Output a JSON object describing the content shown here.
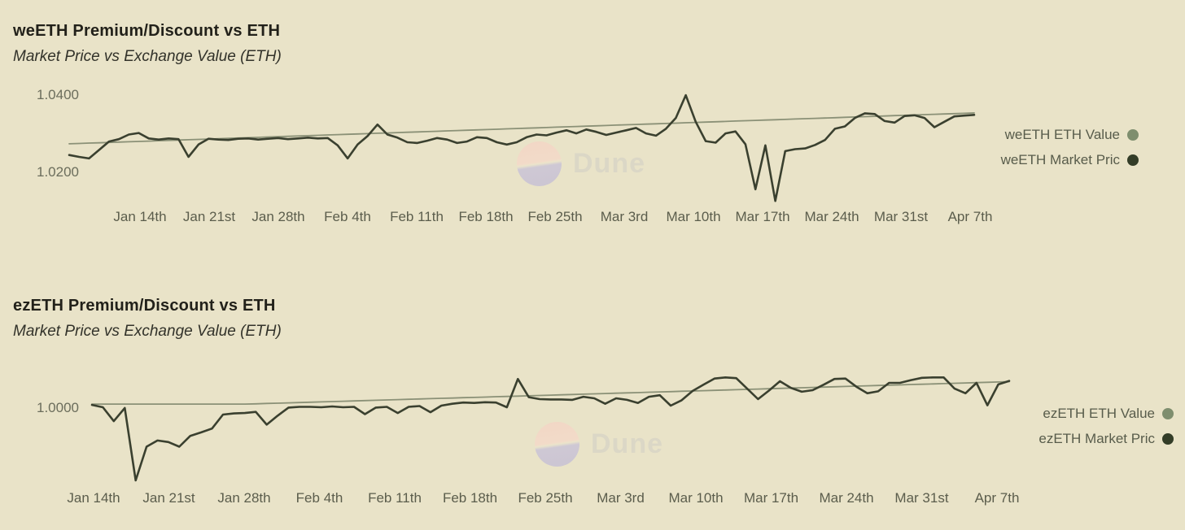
{
  "background_color": "#e9e3c8",
  "watermark": {
    "text": "Dune"
  },
  "chart_data": [
    {
      "type": "line",
      "title": "weETH Premium/Discount vs ETH",
      "subtitle": "Market Price vs Exchange Value (ETH)",
      "y_ticks": [
        "1.0400",
        "1.0200"
      ],
      "x_ticks": [
        "Jan 14th",
        "Jan 21st",
        "Jan 28th",
        "Feb 4th",
        "Feb 11th",
        "Feb 18th",
        "Feb 25th",
        "Mar 3rd",
        "Mar 10th",
        "Mar 17th",
        "Mar 24th",
        "Mar 31st",
        "Apr 7th"
      ],
      "x_start": "Jan 7",
      "x_interval": "1 day",
      "ylim": [
        1.012,
        1.0436
      ],
      "grid": false,
      "legend_position": "right",
      "series": [
        {
          "name": "weETH ETH Value",
          "color": "#8b9177",
          "legend_dot_color": "#7e8e6e",
          "stroke_width": 1.8,
          "values": [
            1.0274,
            1.02749,
            1.02758,
            1.02766,
            1.02775,
            1.02784,
            1.02793,
            1.02802,
            1.0281,
            1.02819,
            1.02828,
            1.02837,
            1.02845,
            1.02854,
            1.02863,
            1.02872,
            1.02881,
            1.02889,
            1.02898,
            1.02907,
            1.02916,
            1.02925,
            1.02933,
            1.02942,
            1.02951,
            1.0296,
            1.02969,
            1.02977,
            1.02986,
            1.02995,
            1.03004,
            1.03013,
            1.03021,
            1.0303,
            1.03039,
            1.03048,
            1.03056,
            1.03065,
            1.03074,
            1.03083,
            1.03092,
            1.031,
            1.03109,
            1.03118,
            1.03127,
            1.03136,
            1.03144,
            1.03153,
            1.03162,
            1.03171,
            1.0318,
            1.03188,
            1.03197,
            1.03206,
            1.03215,
            1.03224,
            1.03232,
            1.03241,
            1.0325,
            1.03259,
            1.03267,
            1.03276,
            1.03285,
            1.03294,
            1.03303,
            1.03311,
            1.0332,
            1.03329,
            1.03338,
            1.03347,
            1.03355,
            1.03364,
            1.03373,
            1.03382,
            1.03391,
            1.03399,
            1.03408,
            1.03417,
            1.03426,
            1.03435,
            1.03443,
            1.03452,
            1.03461,
            1.0347,
            1.03478,
            1.03487,
            1.03496,
            1.03505,
            1.03514,
            1.03522,
            1.03531,
            1.0354
          ]
        },
        {
          "name": "weETH Market Pric",
          "color": "#3a402f",
          "legend_dot_color": "#333d27",
          "stroke_width": 2.6,
          "values": [
            1.0245,
            1.024,
            1.0236,
            1.0258,
            1.028,
            1.0286,
            1.0298,
            1.0302,
            1.0288,
            1.0285,
            1.0288,
            1.0286,
            1.024,
            1.0272,
            1.0287,
            1.0285,
            1.0284,
            1.0287,
            1.0288,
            1.0285,
            1.0287,
            1.0289,
            1.0286,
            1.0288,
            1.029,
            1.0288,
            1.0289,
            1.027,
            1.0236,
            1.0272,
            1.0294,
            1.0324,
            1.0298,
            1.029,
            1.0278,
            1.0276,
            1.0282,
            1.0289,
            1.0285,
            1.0276,
            1.028,
            1.0291,
            1.0289,
            1.0278,
            1.0272,
            1.0278,
            1.0291,
            1.0298,
            1.0296,
            1.0303,
            1.0309,
            1.0301,
            1.0311,
            1.0305,
            1.0297,
            1.0303,
            1.0309,
            1.0315,
            1.0301,
            1.0295,
            1.0313,
            1.0341,
            1.04,
            1.0331,
            1.0281,
            1.0277,
            1.0301,
            1.0306,
            1.0273,
            1.0156,
            1.027,
            1.0126,
            1.0255,
            1.026,
            1.0262,
            1.0271,
            1.0284,
            1.0313,
            1.0319,
            1.0341,
            1.0353,
            1.0351,
            1.0333,
            1.0329,
            1.0346,
            1.0348,
            1.0341,
            1.0317,
            1.0331,
            1.0345,
            1.0347,
            1.0349
          ]
        }
      ]
    },
    {
      "type": "line",
      "title": "ezETH Premium/Discount vs ETH",
      "subtitle": "Market Price vs Exchange Value (ETH)",
      "y_ticks": [
        "1.0000"
      ],
      "x_ticks": [
        "Jan 14th",
        "Jan 21st",
        "Jan 28th",
        "Feb 4th",
        "Feb 11th",
        "Feb 18th",
        "Feb 25th",
        "Mar 3rd",
        "Mar 10th",
        "Mar 17th",
        "Mar 24th",
        "Mar 31st",
        "Apr 7th"
      ],
      "x_start": "Jan 14",
      "x_interval": "1 day",
      "ylim": [
        0.9784,
        1.012
      ],
      "grid": false,
      "legend_position": "right",
      "series": [
        {
          "name": "ezETH ETH Value",
          "color": "#8b9177",
          "legend_dot_color": "#7e8e6e",
          "stroke_width": 1.8,
          "values": [
            1.0,
            1.0,
            1.0,
            1.0,
            1.0,
            1.0,
            1.0,
            1.0,
            1.0,
            1.0,
            1.0,
            1.0,
            1.0,
            1.0,
            1.0,
            1.00008,
            1.00017,
            1.00025,
            1.00033,
            1.00041,
            1.0005,
            1.00058,
            1.00066,
            1.00075,
            1.00083,
            1.00091,
            1.00099,
            1.00108,
            1.00116,
            1.00124,
            1.00133,
            1.00141,
            1.00149,
            1.00157,
            1.00166,
            1.00174,
            1.00182,
            1.00191,
            1.00199,
            1.00207,
            1.00216,
            1.00224,
            1.00232,
            1.0024,
            1.00249,
            1.00257,
            1.00265,
            1.00274,
            1.00282,
            1.0029,
            1.00298,
            1.00307,
            1.00315,
            1.00323,
            1.00332,
            1.0034,
            1.00348,
            1.00356,
            1.00365,
            1.00373,
            1.00381,
            1.0039,
            1.00398,
            1.00406,
            1.00415,
            1.00423,
            1.00431,
            1.00439,
            1.00448,
            1.00456,
            1.00464,
            1.00473,
            1.00481,
            1.00489,
            1.00497,
            1.00506,
            1.00514,
            1.00522,
            1.00531,
            1.00539,
            1.00547,
            1.00555,
            1.00564,
            1.00572,
            1.0058
          ]
        },
        {
          "name": "ezETH Market Pric",
          "color": "#3a402f",
          "legend_dot_color": "#333d27",
          "stroke_width": 2.6,
          "values": [
            0.9998,
            0.9992,
            0.9956,
            0.999,
            0.9803,
            0.989,
            0.9906,
            0.9902,
            0.989,
            0.9918,
            0.9927,
            0.9937,
            0.9973,
            0.9976,
            0.9977,
            0.998,
            0.9947,
            0.997,
            0.9991,
            0.9993,
            0.9993,
            0.9992,
            0.9994,
            0.9992,
            0.9993,
            0.9974,
            0.9991,
            0.9993,
            0.9977,
            0.9993,
            0.9995,
            0.9979,
            0.9996,
            1.0001,
            1.0004,
            1.0003,
            1.0005,
            1.0004,
            0.9992,
            1.0065,
            1.0018,
            1.0013,
            1.0012,
            1.0012,
            1.0011,
            1.0019,
            1.0015,
            1.0001,
            1.0015,
            1.0011,
            1.0003,
            1.0019,
            1.0023,
            0.9996,
            1.001,
            1.0034,
            1.005,
            1.0066,
            1.0069,
            1.0067,
            1.004,
            1.0013,
            1.0035,
            1.0059,
            1.0042,
            1.0032,
            1.0036,
            1.005,
            1.0065,
            1.0066,
            1.0045,
            1.0028,
            1.0033,
            1.0055,
            1.0055,
            1.0062,
            1.0068,
            1.0069,
            1.0069,
            1.004,
            1.0028,
            1.0055,
            0.9997,
            1.0051,
            1.006
          ]
        }
      ]
    }
  ]
}
